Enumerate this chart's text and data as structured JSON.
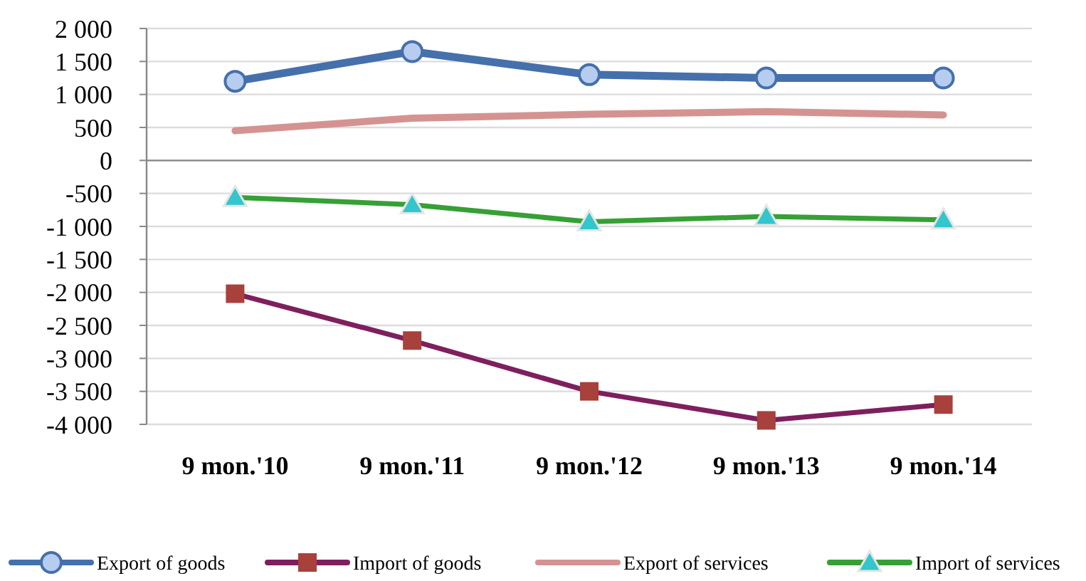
{
  "chart_data": {
    "type": "line",
    "categories": [
      "9 mon.'10",
      "9 mon.'11",
      "9 mon.'12",
      "9 mon.'13",
      "9 mon.'14"
    ],
    "series": [
      {
        "name": "Export of goods",
        "color": "#4570ab",
        "marker": "circle",
        "values": [
          1200,
          1650,
          1300,
          1250,
          1250
        ]
      },
      {
        "name": "Import of goods",
        "color": "#7e1f5e",
        "marker": "square",
        "values": [
          -2020,
          -2730,
          -3500,
          -3940,
          -3700
        ]
      },
      {
        "name": "Export of services",
        "color": "#d49391",
        "marker": "none",
        "values": [
          450,
          640,
          700,
          740,
          690
        ]
      },
      {
        "name": "Import of services",
        "color": "#36a035",
        "marker": "triangle",
        "values": [
          -560,
          -670,
          -930,
          -850,
          -900
        ]
      }
    ],
    "ylim": [
      -4000,
      2000
    ],
    "yticks": [
      {
        "value": 2000,
        "label": "2 000"
      },
      {
        "value": 1500,
        "label": "1 500"
      },
      {
        "value": 1000,
        "label": "1 000"
      },
      500,
      0,
      -500,
      {
        "value": -1000,
        "label": "-1 000"
      },
      {
        "value": -1500,
        "label": "-1 500"
      },
      {
        "value": -2000,
        "label": "-2 000"
      },
      {
        "value": -2500,
        "label": "-2 500"
      },
      {
        "value": -3000,
        "label": "-3 000"
      },
      {
        "value": -3500,
        "label": "-3 500"
      },
      {
        "value": -4000,
        "label": "-4 000"
      }
    ],
    "grid": "y",
    "legend": "bottom"
  }
}
